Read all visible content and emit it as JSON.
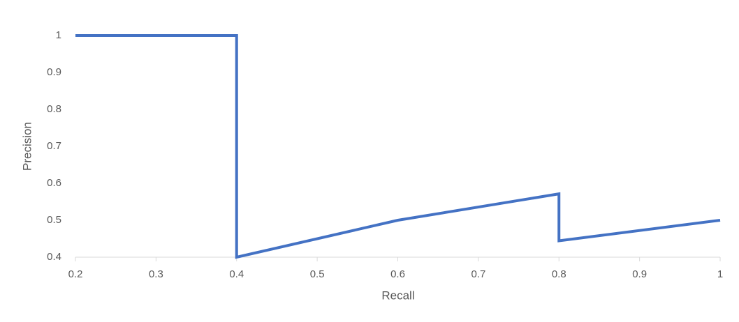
{
  "chart_data": {
    "type": "line",
    "x_label": "Recall",
    "y_label": "Precision",
    "xlim": [
      0.2,
      1
    ],
    "xticks": [
      0.2,
      0.3,
      0.4,
      0.5,
      0.6,
      0.7,
      0.8,
      0.9,
      1
    ],
    "ylim": [
      0.4,
      1
    ],
    "yticks": [
      0.4,
      0.5,
      0.6,
      0.7,
      0.8,
      0.9,
      1
    ],
    "series": [
      {
        "name": "Precision",
        "color": "#4472c4",
        "x": [
          0.2,
          0.4,
          0.4,
          0.6,
          0.8,
          0.8,
          1
        ],
        "values": [
          1,
          1,
          0.4,
          0.5,
          0.5714,
          0.4444,
          0.5
        ]
      }
    ]
  }
}
